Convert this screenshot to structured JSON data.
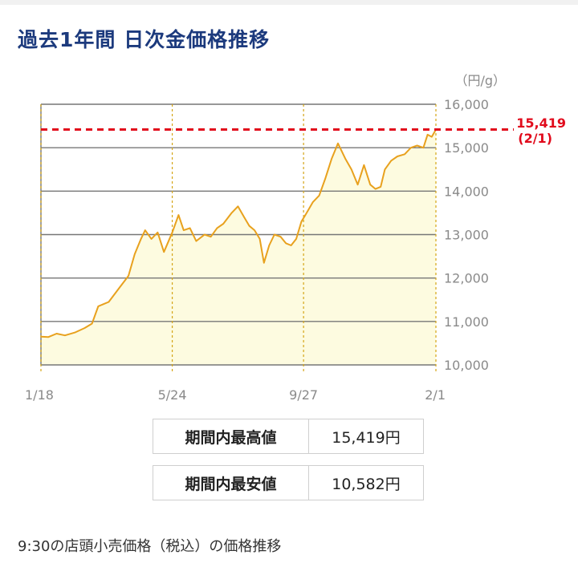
{
  "title": "過去1年間 日次金価格推移",
  "chart_data": {
    "type": "area",
    "unit": "（円/g）",
    "y_ticks": [
      10000,
      11000,
      12000,
      13000,
      14000,
      15000,
      16000
    ],
    "ylim": [
      10000,
      16000
    ],
    "x_range": [
      "2023-01-18",
      "2024-02-01"
    ],
    "x_ticks": [
      {
        "date": "2023-01-18",
        "label": "1/18"
      },
      {
        "date": "2023-05-24",
        "label": "5/24"
      },
      {
        "date": "2023-09-27",
        "label": "9/27"
      },
      {
        "date": "2024-02-01",
        "label": "2/1"
      }
    ],
    "high_line": {
      "value": 15419,
      "label": "15,419",
      "date_label": "(2/1)"
    },
    "series": [
      {
        "points": [
          [
            "2023-01-18",
            10650
          ],
          [
            "2023-01-25",
            10640
          ],
          [
            "2023-02-02",
            10720
          ],
          [
            "2023-02-10",
            10680
          ],
          [
            "2023-02-20",
            10750
          ],
          [
            "2023-03-01",
            10850
          ],
          [
            "2023-03-08",
            10950
          ],
          [
            "2023-03-14",
            11350
          ],
          [
            "2023-03-24",
            11450
          ],
          [
            "2023-04-04",
            11800
          ],
          [
            "2023-04-12",
            12050
          ],
          [
            "2023-04-18",
            12550
          ],
          [
            "2023-04-24",
            12900
          ],
          [
            "2023-04-28",
            13100
          ],
          [
            "2023-05-04",
            12900
          ],
          [
            "2023-05-10",
            13050
          ],
          [
            "2023-05-16",
            12600
          ],
          [
            "2023-05-24",
            13050
          ],
          [
            "2023-05-30",
            13450
          ],
          [
            "2023-06-04",
            13100
          ],
          [
            "2023-06-10",
            13150
          ],
          [
            "2023-06-16",
            12850
          ],
          [
            "2023-06-24",
            13000
          ],
          [
            "2023-06-30",
            12950
          ],
          [
            "2023-07-06",
            13150
          ],
          [
            "2023-07-12",
            13250
          ],
          [
            "2023-07-20",
            13500
          ],
          [
            "2023-07-26",
            13650
          ],
          [
            "2023-08-01",
            13400
          ],
          [
            "2023-08-06",
            13200
          ],
          [
            "2023-08-11",
            13100
          ],
          [
            "2023-08-16",
            12900
          ],
          [
            "2023-08-20",
            12350
          ],
          [
            "2023-08-25",
            12750
          ],
          [
            "2023-08-30",
            13000
          ],
          [
            "2023-09-05",
            12950
          ],
          [
            "2023-09-10",
            12800
          ],
          [
            "2023-09-15",
            12750
          ],
          [
            "2023-09-20",
            12900
          ],
          [
            "2023-09-25",
            13300
          ],
          [
            "2023-09-30",
            13500
          ],
          [
            "2023-10-06",
            13750
          ],
          [
            "2023-10-12",
            13900
          ],
          [
            "2023-10-18",
            14300
          ],
          [
            "2023-10-24",
            14750
          ],
          [
            "2023-10-30",
            15100
          ],
          [
            "2023-11-06",
            14750
          ],
          [
            "2023-11-12",
            14500
          ],
          [
            "2023-11-18",
            14150
          ],
          [
            "2023-11-24",
            14600
          ],
          [
            "2023-11-30",
            14150
          ],
          [
            "2023-12-05",
            14050
          ],
          [
            "2023-12-10",
            14100
          ],
          [
            "2023-12-14",
            14500
          ],
          [
            "2023-12-20",
            14700
          ],
          [
            "2023-12-26",
            14800
          ],
          [
            "2024-01-02",
            14850
          ],
          [
            "2024-01-08",
            15000
          ],
          [
            "2024-01-14",
            15050
          ],
          [
            "2024-01-20",
            15000
          ],
          [
            "2024-01-24",
            15300
          ],
          [
            "2024-01-28",
            15250
          ],
          [
            "2024-02-01",
            15419
          ]
        ]
      }
    ]
  },
  "stats": {
    "high_label": "期間内最高値",
    "high_value": "15,419円",
    "low_label": "期間内最安値",
    "low_value": "10,582円"
  },
  "footnote": "9:30の店頭小売価格（税込）の価格推移",
  "colors": {
    "title": "#1c3a7d",
    "line": "#e8a11e",
    "fill": "#fdfbe0",
    "high_line": "#e10b1c",
    "gridline": "#777777",
    "vline": "#d4a516"
  }
}
